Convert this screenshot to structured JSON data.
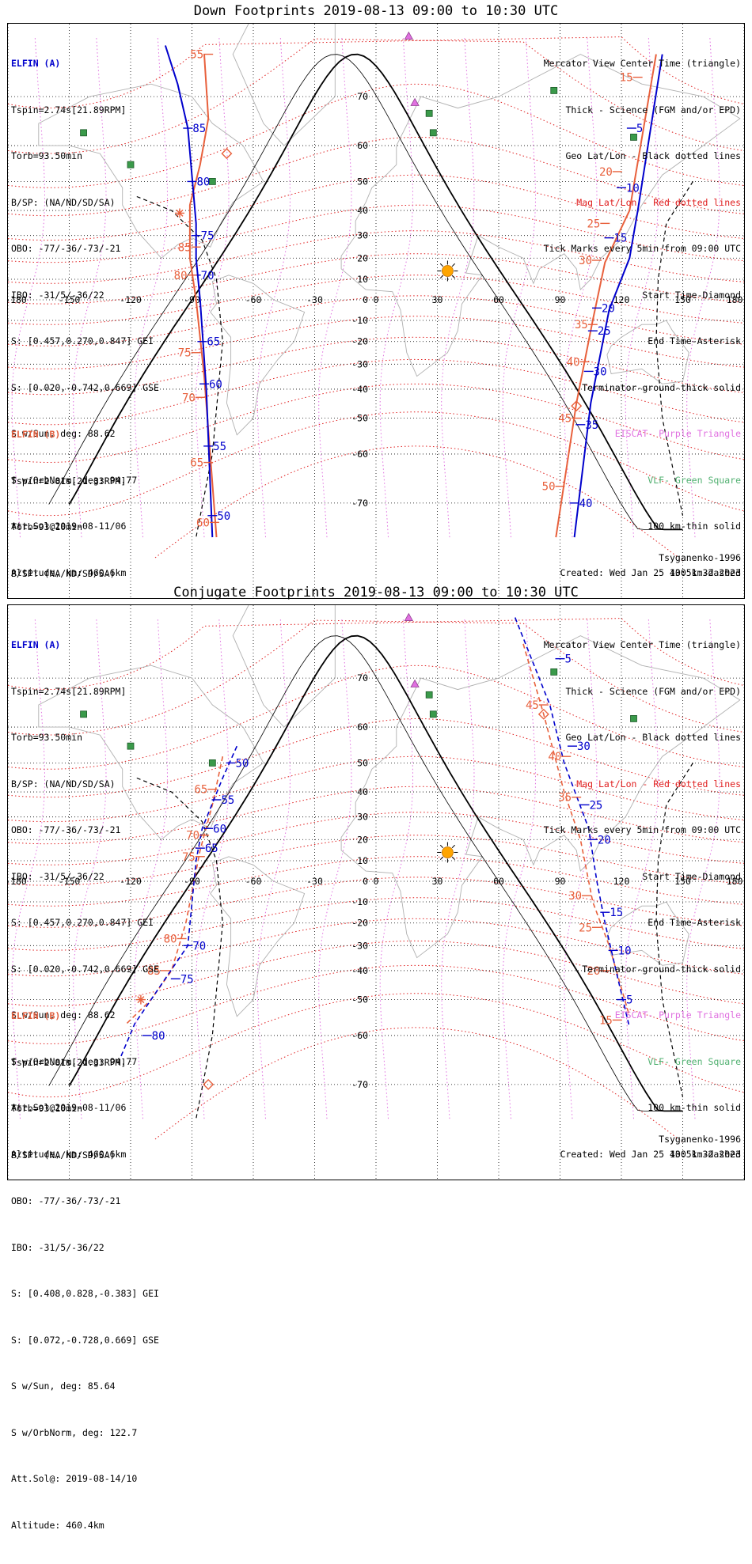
{
  "colors": {
    "elfin_a": "#0000cc",
    "elfin_b": "#e8603c",
    "mag_grid": "#e02020",
    "geo_grid": "#000000",
    "eiscat": "#e070e0",
    "vlf": "#3a9a4a",
    "sun": "#ffa500",
    "coast": "#b0b0b0"
  },
  "icons": {
    "eiscat_marker": "purple-triangle",
    "vlf_marker": "green-square",
    "start_marker": "diamond",
    "end_marker": "asterisk",
    "sun_marker": "sun-icon"
  },
  "map": {
    "projection": "Mercator",
    "lon_range": [
      -180,
      180
    ],
    "lat_range": [
      -75,
      75
    ],
    "lon_ticks": [
      "-180",
      "-150",
      "-120",
      "-90",
      "-60",
      "-30",
      "0",
      "30",
      "60",
      "90",
      "120",
      "150",
      "180"
    ],
    "lat_ticks": [
      "-70",
      "-60",
      "-50",
      "-40",
      "-30",
      "-20",
      "-10",
      "0",
      "10",
      "20",
      "30",
      "40",
      "50",
      "60",
      "70"
    ],
    "sun": {
      "lon": 35,
      "lat": 14
    },
    "eiscat": [
      {
        "lon": 16,
        "lat": 78
      },
      {
        "lon": 19,
        "lat": 69
      }
    ],
    "vlf": [
      {
        "lon": 26,
        "lat": 67
      },
      {
        "lon": 28,
        "lat": 63
      },
      {
        "lon": -143,
        "lat": 63
      },
      {
        "lon": -120,
        "lat": 55
      },
      {
        "lon": -80,
        "lat": 50
      },
      {
        "lon": 87,
        "lat": 71
      },
      {
        "lon": 126,
        "lat": 62
      }
    ]
  },
  "legend_right": [
    {
      "text": "Mercator View Center Time (triangle)",
      "color": "black"
    },
    {
      "text": "Thick - Science (FGM and/or EPD)",
      "color": "black"
    },
    {
      "text": "Geo Lat/Lon - Black dotted lines",
      "color": "black"
    },
    {
      "text": "Mag Lat/Lon - Red dotted lines",
      "color": "red"
    },
    {
      "text": "Tick Marks every 5min from 09:00 UTC",
      "color": "black"
    },
    {
      "text": "Start Time-Diamond",
      "color": "black"
    },
    {
      "text": "End Time-Asterisk",
      "color": "black"
    },
    {
      "text": "Terminator-ground-thick solid",
      "color": "black"
    },
    {
      "text": "EISCAT- Purple Triangle",
      "color": "purple"
    },
    {
      "text": "VLF- Green Square",
      "color": "green"
    },
    {
      "text": "100 km-thin solid",
      "color": "black"
    },
    {
      "text": "400 km-dashed",
      "color": "black"
    }
  ],
  "elfin_a": {
    "label": "ELFIN (A)",
    "lines": [
      "Tspin=2.74s[21.89RPM]",
      "Torb=93.50min",
      "B/SP: (NA/ND/SD/SA)",
      "OBO: -77/-36/-73/-21",
      "IBO: -31/5/-36/22",
      "S: [0.457,0.270,0.847] GEI",
      "S: [0.020,-0.742,0.669] GSE",
      "S w/Sun, deg: 88.62",
      "S w/OrbNorm, deg: 94.77",
      "Att.Sol@2019-08-11/06",
      "Altitude, km: 460.6km"
    ]
  },
  "elfin_b": {
    "label": "ELFIN (B)",
    "lines": [
      "Tspin=2.81s[21.33RPM]",
      "Torb=93.10min",
      "B/SP: (NA/ND/SD/SA)",
      "OBO: -77/-36/-73/-21",
      "IBO: -31/5/-36/22",
      "S: [0.408,0.828,-0.383] GEI",
      "S: [0.072,-0.728,0.669] GSE",
      "S w/Sun, deg: 85.64",
      "S w/OrbNorm, deg: 122.7",
      "Att.Sol@: 2019-08-14/10",
      "Altitude: 460.4km"
    ]
  },
  "panels": [
    {
      "title": "Down Footprints 2019-08-13 09:00 to 10:30 UTC",
      "footer_left": "Tsyganenko-1996",
      "footer_right": "Created: Wed Jan 25 13:51:32 2023",
      "tracks_a": [
        {
          "style": "solid",
          "points": [
            [
              -103,
              77
            ],
            [
              -97,
              72
            ],
            [
              -92,
              64
            ],
            [
              -88,
              35
            ],
            [
              -88,
              20
            ],
            [
              -86,
              0
            ],
            [
              -83,
              -40
            ],
            [
              -80,
              -75
            ]
          ]
        },
        {
          "style": "solid",
          "points": [
            [
              140,
              76
            ],
            [
              128,
              40
            ],
            [
              124,
              20
            ],
            [
              114,
              -5
            ],
            [
              105,
              -45
            ],
            [
              97,
              -75
            ]
          ]
        }
      ],
      "tracks_b": [
        {
          "style": "solid",
          "points": [
            [
              -84,
              76
            ],
            [
              -82,
              66
            ],
            [
              -86,
              55
            ],
            [
              -91,
              42
            ],
            [
              -91,
              20
            ],
            [
              -88,
              0
            ],
            [
              -84,
              -35
            ],
            [
              -78,
              -75
            ]
          ]
        },
        {
          "style": "solid",
          "points": [
            [
              137,
              76
            ],
            [
              124,
              40
            ],
            [
              112,
              18
            ],
            [
              106,
              -10
            ],
            [
              98,
              -45
            ],
            [
              88,
              -75
            ]
          ]
        }
      ],
      "ticks_a": [
        {
          "lon": -92,
          "lat": 64,
          "label": "85"
        },
        {
          "lon": -90,
          "lat": 50,
          "label": "80"
        },
        {
          "lon": -88,
          "lat": 30,
          "label": "75"
        },
        {
          "lon": -88,
          "lat": 12,
          "label": "70"
        },
        {
          "lon": -85,
          "lat": -20,
          "label": "65"
        },
        {
          "lon": -84,
          "lat": -38,
          "label": "60"
        },
        {
          "lon": -82,
          "lat": -58,
          "label": "55"
        },
        {
          "lon": -80,
          "lat": -72,
          "label": "50"
        },
        {
          "lon": 125,
          "lat": 64,
          "label": "5"
        },
        {
          "lon": 120,
          "lat": 48,
          "label": "10"
        },
        {
          "lon": 114,
          "lat": 29,
          "label": "15"
        },
        {
          "lon": 108,
          "lat": -4,
          "label": "20"
        },
        {
          "lon": 106,
          "lat": -15,
          "label": "25"
        },
        {
          "lon": 104,
          "lat": -33,
          "label": "30"
        },
        {
          "lon": 100,
          "lat": -52,
          "label": "35"
        },
        {
          "lon": 97,
          "lat": -70,
          "label": "40"
        }
      ],
      "ticks_b": [
        {
          "lon": -82,
          "lat": 76,
          "label": "55"
        },
        {
          "lon": -88,
          "lat": 25,
          "label": "85"
        },
        {
          "lon": -90,
          "lat": 12,
          "label": "80"
        },
        {
          "lon": -88,
          "lat": -25,
          "label": "75"
        },
        {
          "lon": -86,
          "lat": -43,
          "label": "70"
        },
        {
          "lon": -82,
          "lat": -62,
          "label": "65"
        },
        {
          "lon": -79,
          "lat": -73,
          "label": "60"
        },
        {
          "lon": 128,
          "lat": 73,
          "label": "15"
        },
        {
          "lon": 118,
          "lat": 53,
          "label": "20"
        },
        {
          "lon": 112,
          "lat": 35,
          "label": "25"
        },
        {
          "lon": 108,
          "lat": 19,
          "label": "30"
        },
        {
          "lon": 106,
          "lat": -12,
          "label": "35"
        },
        {
          "lon": 102,
          "lat": -29,
          "label": "40"
        },
        {
          "lon": 98,
          "lat": -50,
          "label": "45"
        },
        {
          "lon": 90,
          "lat": -67,
          "label": "50"
        }
      ],
      "start_markers": [
        {
          "lon": -73,
          "lat": 58,
          "sat": "b"
        },
        {
          "lon": 98,
          "lat": -46,
          "sat": "b"
        }
      ],
      "end_markers": [
        {
          "lon": -96,
          "lat": 39,
          "sat": "b"
        }
      ]
    },
    {
      "title": "Conjugate Footprints 2019-08-13 09:00 to 10:30 UTC",
      "footer_left": "Tsyganenko-1996",
      "footer_right": "Created: Wed Jan 25 13:51:32 2023",
      "tracks_a": [
        {
          "style": "dashed",
          "points": [
            [
              -68,
              55
            ],
            [
              -75,
              45
            ],
            [
              -85,
              25
            ],
            [
              -88,
              10
            ],
            [
              -92,
              -30
            ],
            [
              -105,
              -45
            ],
            [
              -118,
              -57
            ],
            [
              -125,
              -65
            ]
          ]
        },
        {
          "style": "dashed",
          "points": [
            [
              68,
              78
            ],
            [
              85,
              65
            ],
            [
              92,
              50
            ],
            [
              104,
              25
            ],
            [
              108,
              0
            ],
            [
              112,
              -20
            ],
            [
              118,
              -42
            ],
            [
              124,
              -58
            ]
          ]
        }
      ],
      "tracks_b": [
        {
          "style": "dashed",
          "points": [
            [
              -75,
              52
            ],
            [
              -80,
              35
            ],
            [
              -86,
              15
            ],
            [
              -93,
              -20
            ],
            [
              -100,
              -40
            ],
            [
              -110,
              -50
            ],
            [
              -122,
              -57
            ]
          ]
        },
        {
          "style": "dashed",
          "points": [
            [
              72,
              75
            ],
            [
              82,
              63
            ],
            [
              92,
              40
            ],
            [
              100,
              20
            ],
            [
              106,
              -10
            ],
            [
              114,
              -30
            ],
            [
              124,
              -55
            ]
          ]
        }
      ],
      "ticks_a": [
        {
          "lon": -71,
          "lat": 50,
          "label": "50"
        },
        {
          "lon": -78,
          "lat": 37,
          "label": "55"
        },
        {
          "lon": -82,
          "lat": 25,
          "label": "60"
        },
        {
          "lon": -86,
          "lat": 16,
          "label": "65"
        },
        {
          "lon": -92,
          "lat": -30,
          "label": "70"
        },
        {
          "lon": -98,
          "lat": -43,
          "label": "75"
        },
        {
          "lon": -112,
          "lat": -60,
          "label": "80"
        },
        {
          "lon": 90,
          "lat": 73,
          "label": "5"
        },
        {
          "lon": 96,
          "lat": 55,
          "label": "30"
        },
        {
          "lon": 102,
          "lat": 35,
          "label": "25"
        },
        {
          "lon": 106,
          "lat": 20,
          "label": "20"
        },
        {
          "lon": 112,
          "lat": -15,
          "label": "15"
        },
        {
          "lon": 116,
          "lat": -32,
          "label": "10"
        },
        {
          "lon": 120,
          "lat": -50,
          "label": "5"
        }
      ],
      "ticks_b": [
        {
          "lon": -80,
          "lat": 41,
          "label": "65"
        },
        {
          "lon": -84,
          "lat": 22,
          "label": "70"
        },
        {
          "lon": -86,
          "lat": 12,
          "label": "75"
        },
        {
          "lon": -95,
          "lat": -27,
          "label": "80"
        },
        {
          "lon": -103,
          "lat": -40,
          "label": "85"
        },
        {
          "lon": 82,
          "lat": 65,
          "label": "45"
        },
        {
          "lon": 93,
          "lat": 52,
          "label": "40"
        },
        {
          "lon": 98,
          "lat": 38,
          "label": "35"
        },
        {
          "lon": 103,
          "lat": -7,
          "label": "30"
        },
        {
          "lon": 108,
          "lat": -22,
          "label": "25"
        },
        {
          "lon": 112,
          "lat": -40,
          "label": "20"
        },
        {
          "lon": 118,
          "lat": -56,
          "label": "15"
        }
      ],
      "start_markers": [
        {
          "lon": -82,
          "lat": -70,
          "sat": "b"
        },
        {
          "lon": 82,
          "lat": 63,
          "sat": "b"
        }
      ],
      "end_markers": [
        {
          "lon": -115,
          "lat": -50,
          "sat": "b"
        }
      ]
    }
  ]
}
